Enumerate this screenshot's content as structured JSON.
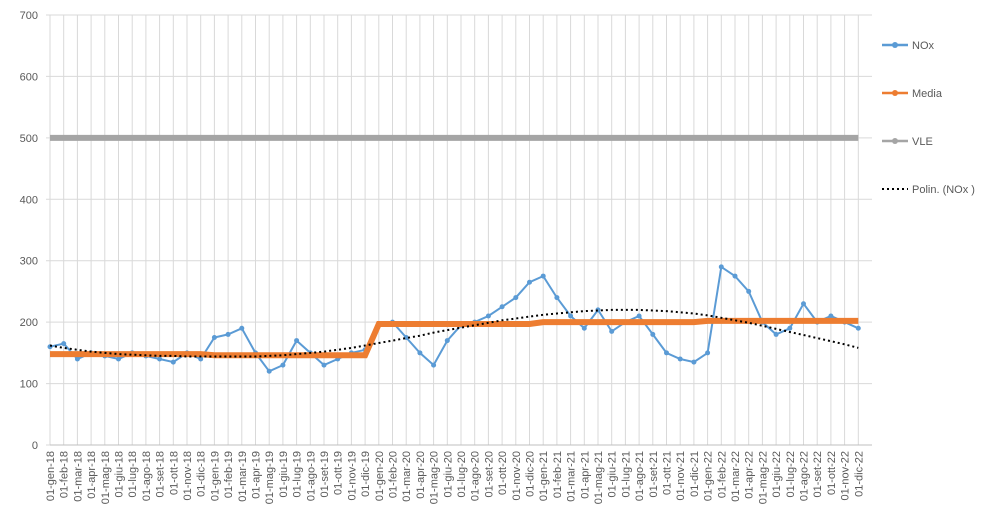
{
  "chart_data": {
    "type": "line",
    "categories": [
      "01-gen-18",
      "01-feb-18",
      "01-mar-18",
      "01-apr-18",
      "01-mag-18",
      "01-giu-18",
      "01-lug-18",
      "01-ago-18",
      "01-set-18",
      "01-ott-18",
      "01-nov-18",
      "01-dic-18",
      "01-gen-19",
      "01-feb-19",
      "01-mar-19",
      "01-apr-19",
      "01-mag-19",
      "01-giu-19",
      "01-lug-19",
      "01-ago-19",
      "01-set-19",
      "01-ott-19",
      "01-nov-19",
      "01-dic-19",
      "01-gen-20",
      "01-feb-20",
      "01-mar-20",
      "01-apr-20",
      "01-mag-20",
      "01-giu-20",
      "01-lug-20",
      "01-ago-20",
      "01-set-20",
      "01-ott-20",
      "01-nov-20",
      "01-dic-20",
      "01-gen-21",
      "01-feb-21",
      "01-mar-21",
      "01-apr-21",
      "01-mag-21",
      "01-giu-21",
      "01-lug-21",
      "01-ago-21",
      "01-set-21",
      "01-ott-21",
      "01-nov-21",
      "01-dic-21",
      "01-gen-22",
      "01-feb-22",
      "01-mar-22",
      "01-apr-22",
      "01-mag-22",
      "01-giu-22",
      "01-lug-22",
      "01-ago-22",
      "01-set-22",
      "01-ott-22",
      "01-nov-22",
      "01-dic-22"
    ],
    "series": [
      {
        "name": "NOx",
        "color": "#5b9bd5",
        "values": [
          160,
          165,
          140,
          150,
          145,
          140,
          150,
          145,
          140,
          135,
          150,
          140,
          175,
          180,
          190,
          150,
          120,
          130,
          170,
          150,
          130,
          140,
          150,
          155,
          195,
          200,
          175,
          150,
          130,
          170,
          195,
          200,
          210,
          225,
          240,
          265,
          275,
          240,
          210,
          190,
          220,
          185,
          200,
          210,
          180,
          150,
          140,
          135,
          150,
          290,
          275,
          250,
          200,
          180,
          190,
          230,
          200,
          210,
          200,
          190
        ]
      },
      {
        "name": "Media",
        "color": "#ed7d31",
        "values": [
          148,
          148,
          148,
          148,
          148,
          148,
          148,
          148,
          148,
          148,
          148,
          148,
          146,
          146,
          146,
          146,
          146,
          146,
          146,
          146,
          146,
          146,
          146,
          146,
          197,
          197,
          197,
          197,
          197,
          197,
          197,
          197,
          197,
          197,
          197,
          197,
          200,
          200,
          200,
          200,
          200,
          200,
          200,
          200,
          200,
          200,
          200,
          200,
          202,
          202,
          202,
          202,
          202,
          202,
          202,
          202,
          202,
          202,
          202,
          202
        ]
      },
      {
        "name": "VLE",
        "color": "#a5a5a5",
        "values": [
          500,
          500,
          500,
          500,
          500,
          500,
          500,
          500,
          500,
          500,
          500,
          500,
          500,
          500,
          500,
          500,
          500,
          500,
          500,
          500,
          500,
          500,
          500,
          500,
          500,
          500,
          500,
          500,
          500,
          500,
          500,
          500,
          500,
          500,
          500,
          500,
          500,
          500,
          500,
          500,
          500,
          500,
          500,
          500,
          500,
          500,
          500,
          500,
          500,
          500,
          500,
          500,
          500,
          500,
          500,
          500,
          500,
          500,
          500,
          500
        ]
      },
      {
        "name": "Polin. (NOx )",
        "color": "#000000",
        "values": [
          162,
          158,
          155,
          152,
          150,
          148,
          147,
          146,
          145,
          145,
          144,
          144,
          144,
          144,
          144,
          144,
          145,
          146,
          148,
          150,
          152,
          155,
          158,
          162,
          166,
          170,
          174,
          178,
          183,
          187,
          191,
          195,
          199,
          203,
          206,
          209,
          212,
          214,
          216,
          218,
          219,
          220,
          220,
          220,
          219,
          218,
          216,
          214,
          211,
          207,
          203,
          199,
          194,
          189,
          184,
          179,
          174,
          169,
          164,
          158
        ]
      }
    ],
    "ylim": [
      0,
      700
    ],
    "yticks": [
      0,
      100,
      200,
      300,
      400,
      500,
      600,
      700
    ],
    "grid": true,
    "legend": "right"
  }
}
